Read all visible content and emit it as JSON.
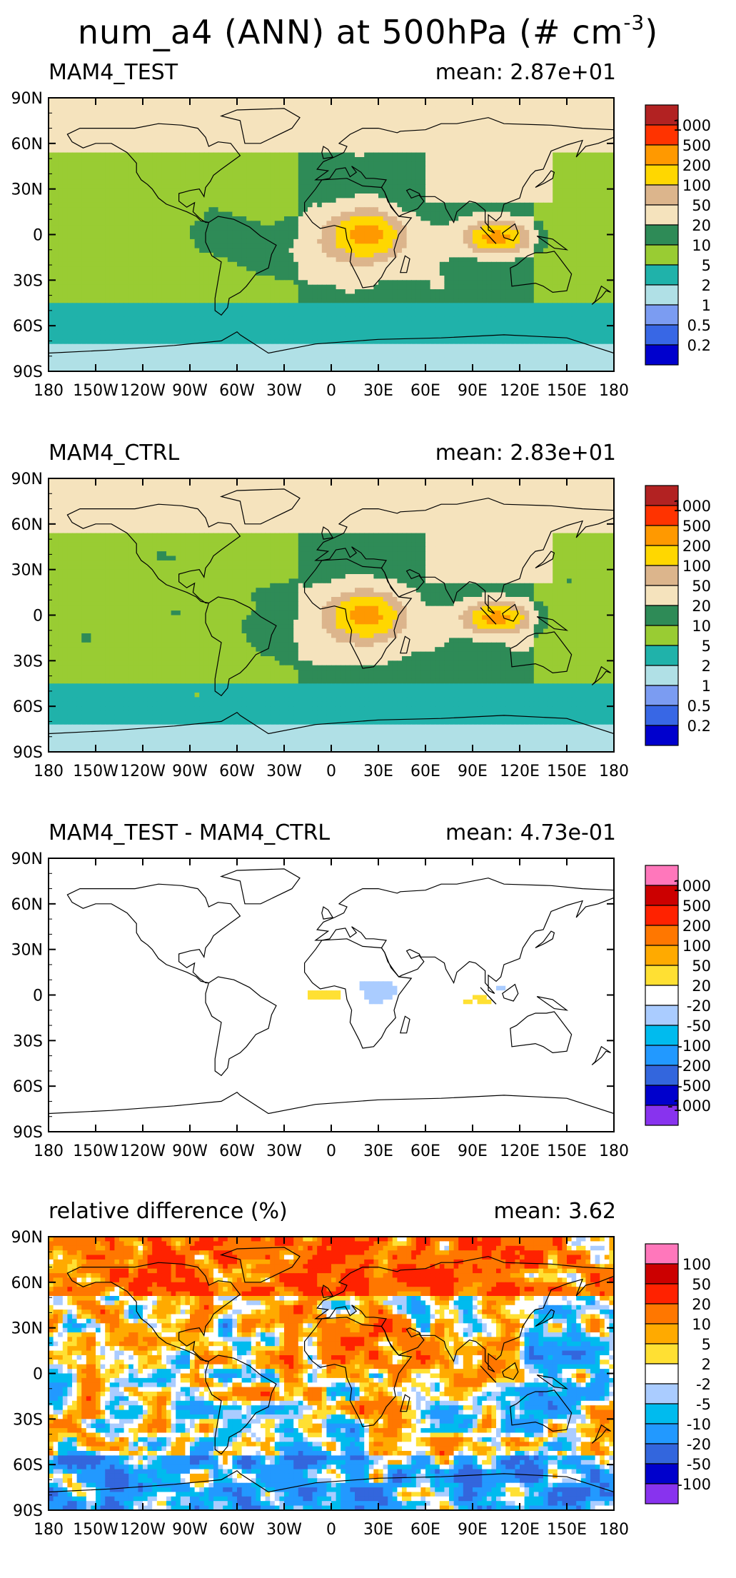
{
  "title_main": "num_a4 (ANN) at 500hPa (# cm",
  "title_sup": "-3",
  "title_close": ")",
  "lat_labels": [
    "90N",
    "60N",
    "30N",
    "0",
    "30S",
    "60S",
    "90S"
  ],
  "lon_labels": [
    "180",
    "150W",
    "120W",
    "90W",
    "60W",
    "30W",
    "0",
    "30E",
    "60E",
    "90E",
    "120E",
    "150E",
    "180"
  ],
  "panels": [
    {
      "title": "MAM4_TEST",
      "mean": "mean: 2.87e+01",
      "field": "test",
      "colorbar": {
        "colors": [
          "#b22222",
          "#ff3300",
          "#ff9900",
          "#ffd700",
          "#dcb58c",
          "#f5e3bd",
          "#2e8b57",
          "#99cc33",
          "#20b2aa",
          "#b0e0e6",
          "#7b9cf2",
          "#3867e5",
          "#0000cd"
        ],
        "labels": [
          "1000",
          "500",
          "200",
          "100",
          "50",
          "20",
          "10",
          "5",
          "2",
          "1",
          "0.5",
          "0.2"
        ]
      }
    },
    {
      "title": "MAM4_CTRL",
      "mean": "mean: 2.83e+01",
      "field": "ctrl",
      "colorbar": {
        "colors": [
          "#b22222",
          "#ff3300",
          "#ff9900",
          "#ffd700",
          "#dcb58c",
          "#f5e3bd",
          "#2e8b57",
          "#99cc33",
          "#20b2aa",
          "#b0e0e6",
          "#7b9cf2",
          "#3867e5",
          "#0000cd"
        ],
        "labels": [
          "1000",
          "500",
          "200",
          "100",
          "50",
          "20",
          "10",
          "5",
          "2",
          "1",
          "0.5",
          "0.2"
        ]
      }
    },
    {
      "title": "MAM4_TEST - MAM4_CTRL",
      "mean": "mean: 4.73e-01",
      "field": "diff",
      "colorbar": {
        "colors": [
          "#ff77bb",
          "#cc0000",
          "#ff2200",
          "#ff7700",
          "#ffaa00",
          "#ffe033",
          "#ffffff",
          "#aaccff",
          "#00bbee",
          "#2299ff",
          "#3366dd",
          "#0000cc",
          "#8833ee"
        ],
        "labels": [
          "1000",
          "500",
          "200",
          "100",
          "50",
          "20",
          "-20",
          "-50",
          "-100",
          "-200",
          "-500",
          "-1000"
        ]
      }
    },
    {
      "title": "relative difference (%)",
      "mean": "mean:   3.62",
      "field": "rel",
      "colorbar": {
        "colors": [
          "#ff77bb",
          "#cc0000",
          "#ff2200",
          "#ff7700",
          "#ffaa00",
          "#ffe033",
          "#ffffff",
          "#aaccff",
          "#00bbee",
          "#2299ff",
          "#3366dd",
          "#0000cc",
          "#8833ee"
        ],
        "labels": [
          "100",
          "50",
          "20",
          "10",
          "5",
          "2",
          "-2",
          "-5",
          "-10",
          "-20",
          "-50",
          "-100"
        ]
      }
    }
  ]
}
